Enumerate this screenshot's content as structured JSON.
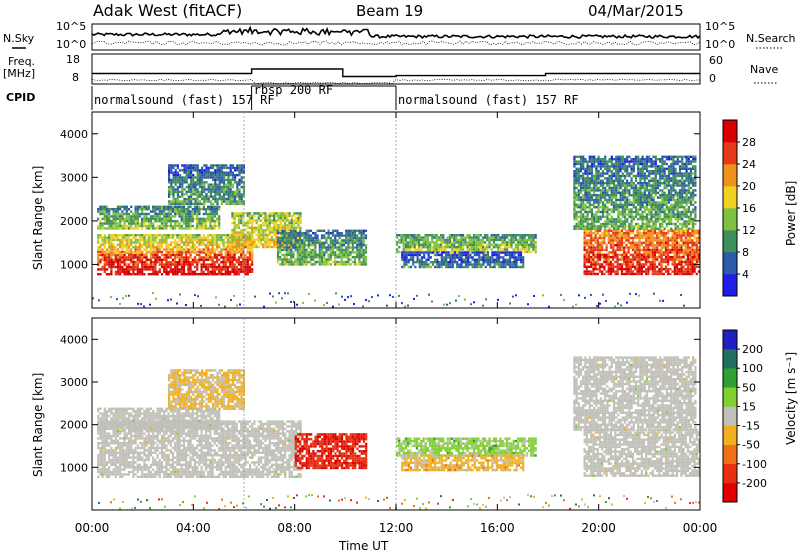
{
  "header": {
    "station": "Adak West (fitACF)",
    "beam": "Beam 19",
    "date": "04/Mar/2015"
  },
  "strip_labels": {
    "nsky": "N.Sky",
    "nsearch": "N.Search",
    "freq_top": "Freq.",
    "freq_unit": "[MHz]",
    "nave": "Nave",
    "cpid": "CPID",
    "nsky_ticks": [
      "10^5",
      "10^0"
    ],
    "nsearch_ticks": [
      "10^5",
      "10^0"
    ],
    "freq_ticks": [
      "18",
      "8"
    ],
    "nave_ticks": [
      "60",
      "0"
    ]
  },
  "cpid_segments": [
    {
      "label": "normalsound (fast) 157 RF",
      "start_hour": 0,
      "end_hour": 6.3
    },
    {
      "label": "rbsp 200 RF",
      "start_hour": 6.3,
      "end_hour": 12.0
    },
    {
      "label": "normalsound (fast) 157 RF",
      "start_hour": 12.0,
      "end_hour": 24
    }
  ],
  "x_axis": {
    "label": "Time UT",
    "ticks": [
      "00:00",
      "04:00",
      "08:00",
      "12:00",
      "16:00",
      "20:00",
      "00:00"
    ]
  },
  "power_panel": {
    "ylabel": "Slant Range [km]",
    "yticks": [
      "1000",
      "2000",
      "3000",
      "4000"
    ],
    "colorbar_label": "Power [dB]",
    "colorbar_ticks": [
      "4",
      "8",
      "12",
      "16",
      "20",
      "24",
      "28"
    ],
    "colors": [
      "#1e1ee6",
      "#2a5aa8",
      "#3f8f5a",
      "#7fc13f",
      "#f0d020",
      "#f0901e",
      "#e83818",
      "#d80000"
    ]
  },
  "velocity_panel": {
    "ylabel": "Slant Range [km]",
    "yticks": [
      "1000",
      "2000",
      "3000",
      "4000"
    ],
    "colorbar_label": "Velocity [m s⁻¹]",
    "colorbar_ticks": [
      "200",
      "100",
      "50",
      "15",
      "-15",
      "-50",
      "-100",
      "-200"
    ],
    "colors": [
      "#2020c0",
      "#207060",
      "#30a030",
      "#80d030",
      "#c0c0b8",
      "#f0b020",
      "#f07018",
      "#e83010",
      "#e00000"
    ],
    "ground_scatter_color": "#c0c0b8"
  },
  "chart_data": [
    {
      "type": "heatmap",
      "title": "Power",
      "xlabel": "Time UT",
      "ylabel": "Slant Range [km]",
      "xlim": [
        0,
        24
      ],
      "ylim": [
        0,
        4500
      ],
      "colorbar": {
        "label": "Power [dB]",
        "range": [
          0,
          30
        ]
      },
      "regions": [
        {
          "t_start": 0.2,
          "t_end": 6.3,
          "range_low": 800,
          "range_high": 1300,
          "power_db": 26
        },
        {
          "t_start": 0.2,
          "t_end": 6.3,
          "range_low": 1300,
          "range_high": 1700,
          "power_db": 17
        },
        {
          "t_start": 0.2,
          "t_end": 5.0,
          "range_low": 1850,
          "range_high": 2350,
          "power_db": 11
        },
        {
          "t_start": 3.0,
          "t_end": 6.0,
          "range_low": 2400,
          "range_high": 3300,
          "power_db": 8
        },
        {
          "t_start": 5.5,
          "t_end": 8.2,
          "range_low": 1400,
          "range_high": 2200,
          "power_db": 16
        },
        {
          "t_start": 7.3,
          "t_end": 10.8,
          "range_low": 1000,
          "range_high": 1800,
          "power_db": 10
        },
        {
          "t_start": 12.0,
          "t_end": 17.5,
          "range_low": 1300,
          "range_high": 1700,
          "power_db": 12
        },
        {
          "t_start": 12.2,
          "t_end": 17.0,
          "range_low": 950,
          "range_high": 1300,
          "power_db": 6
        },
        {
          "t_start": 19.4,
          "t_end": 24,
          "range_low": 800,
          "range_high": 1800,
          "power_db": 24
        },
        {
          "t_start": 19.0,
          "t_end": 23.8,
          "range_low": 1800,
          "range_high": 3500,
          "power_db": 9
        }
      ]
    },
    {
      "type": "heatmap",
      "title": "Velocity",
      "xlabel": "Time UT",
      "ylabel": "Slant Range [km]",
      "xlim": [
        0,
        24
      ],
      "ylim": [
        0,
        4500
      ],
      "colorbar": {
        "label": "Velocity [m s⁻¹]",
        "range": [
          -200,
          200
        ]
      },
      "regions": [
        {
          "t_start": 0.2,
          "t_end": 8.2,
          "range_low": 800,
          "range_high": 2100,
          "velocity": 0,
          "ground_scatter": true
        },
        {
          "t_start": 0.2,
          "t_end": 5.0,
          "range_low": 1900,
          "range_high": 2400,
          "velocity": 0,
          "ground_scatter": true
        },
        {
          "t_start": 3.0,
          "t_end": 6.0,
          "range_low": 2400,
          "range_high": 3300,
          "velocity": -30
        },
        {
          "t_start": 8.0,
          "t_end": 10.8,
          "range_low": 1000,
          "range_high": 1800,
          "velocity": -150
        },
        {
          "t_start": 12.0,
          "t_end": 17.5,
          "range_low": 1300,
          "range_high": 1700,
          "velocity": 40
        },
        {
          "t_start": 12.2,
          "t_end": 17.0,
          "range_low": 950,
          "range_high": 1300,
          "velocity": -40
        },
        {
          "t_start": 19.4,
          "t_end": 24,
          "range_low": 800,
          "range_high": 1900,
          "velocity": 0,
          "ground_scatter": true
        },
        {
          "t_start": 19.0,
          "t_end": 23.8,
          "range_low": 1900,
          "range_high": 3600,
          "velocity": 0,
          "ground_scatter": true
        }
      ]
    }
  ]
}
